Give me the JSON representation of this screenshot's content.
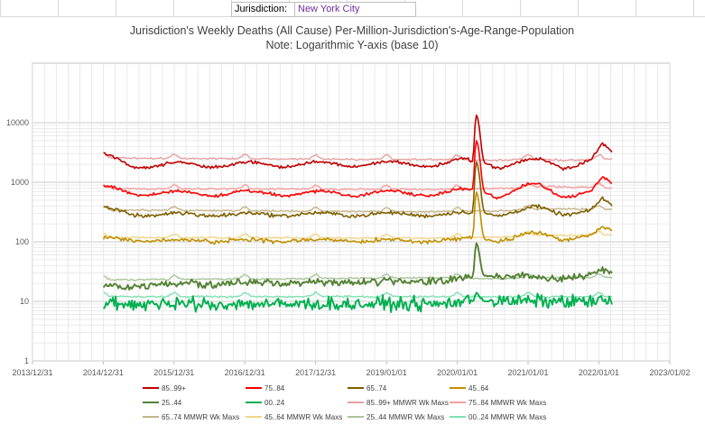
{
  "header": {
    "jurisdiction_label": "Jurisdiction:",
    "jurisdiction_value": "New York City"
  },
  "chart_data": {
    "type": "line",
    "title": "Jurisdiction's Weekly Deaths (All Cause) Per-Million-Jurisdiction's-Age-Range-Population",
    "subtitle": "Note: Logarithmic Y-axis (base 10)",
    "xlabel": "",
    "ylabel": "",
    "y_scale": "log10",
    "ylim": [
      1,
      100000
    ],
    "y_ticks": [
      1,
      10,
      100,
      1000,
      10000
    ],
    "y_tick_labels": [
      "1",
      "10",
      "100",
      "1000",
      "10000"
    ],
    "xlim": [
      "2013-12-31",
      "2023-01-02"
    ],
    "x_ticks": [
      "2013/12/31",
      "2014/12/31",
      "2015/12/31",
      "2016/12/31",
      "2017/12/31",
      "2019/01/01",
      "2020/01/01",
      "2021/01/01",
      "2022/01/01",
      "2023/01/02"
    ],
    "grid": true,
    "legend_position": "bottom",
    "x_range_of_data": [
      "2015-01-01",
      "2022-03-15"
    ],
    "covid_peak_date": "2020-04-08",
    "series": [
      {
        "name": "85..99+",
        "color": "#c00000",
        "kind": "weekly",
        "baseline": 2100,
        "seasonal_amp": 0.2,
        "noise": 0.05,
        "trend": [
          [
            2015.0,
            2800
          ],
          [
            2015.4,
            1950
          ],
          [
            2019.8,
            2050
          ],
          [
            2020.1,
            2250
          ],
          [
            2020.6,
            1900
          ],
          [
            2020.9,
            2150
          ],
          [
            2021.2,
            2300
          ],
          [
            2021.5,
            1900
          ],
          [
            2021.9,
            2300
          ],
          [
            2022.05,
            4100
          ],
          [
            2022.2,
            2900
          ]
        ],
        "peak": 13500
      },
      {
        "name": "75..84",
        "color": "#ff0000",
        "kind": "weekly",
        "baseline": 700,
        "seasonal_amp": 0.18,
        "noise": 0.05,
        "trend": [
          [
            2015.0,
            820
          ],
          [
            2015.5,
            650
          ],
          [
            2019.8,
            660
          ],
          [
            2020.1,
            720
          ],
          [
            2020.6,
            600
          ],
          [
            2020.9,
            800
          ],
          [
            2021.1,
            900
          ],
          [
            2021.5,
            600
          ],
          [
            2021.9,
            700
          ],
          [
            2022.05,
            1150
          ],
          [
            2022.2,
            900
          ]
        ],
        "peak": 5000
      },
      {
        "name": "65..74",
        "color": "#7f6000",
        "kind": "weekly",
        "baseline": 310,
        "seasonal_amp": 0.12,
        "noise": 0.06,
        "trend": [
          [
            2015.0,
            360
          ],
          [
            2015.5,
            290
          ],
          [
            2019.8,
            290
          ],
          [
            2020.1,
            300
          ],
          [
            2020.6,
            290
          ],
          [
            2020.9,
            330
          ],
          [
            2021.1,
            380
          ],
          [
            2021.5,
            300
          ],
          [
            2021.9,
            330
          ],
          [
            2022.05,
            520
          ],
          [
            2022.2,
            380
          ]
        ],
        "peak": 2200
      },
      {
        "name": "45..64",
        "color": "#bf9000",
        "kind": "weekly",
        "baseline": 110,
        "seasonal_amp": 0.08,
        "noise": 0.07,
        "trend": [
          [
            2015.0,
            115
          ],
          [
            2015.5,
            105
          ],
          [
            2019.8,
            105
          ],
          [
            2020.1,
            110
          ],
          [
            2020.6,
            105
          ],
          [
            2020.9,
            125
          ],
          [
            2021.1,
            140
          ],
          [
            2021.5,
            110
          ],
          [
            2021.9,
            130
          ],
          [
            2022.05,
            175
          ],
          [
            2022.2,
            145
          ]
        ],
        "peak": 680
      },
      {
        "name": "25..44",
        "color": "#548235",
        "kind": "weekly",
        "baseline": 20,
        "seasonal_amp": 0.05,
        "noise": 0.12,
        "trend": [
          [
            2015.0,
            18
          ],
          [
            2016.5,
            20
          ],
          [
            2019.8,
            22
          ],
          [
            2020.1,
            24
          ],
          [
            2020.5,
            27
          ],
          [
            2021.0,
            26
          ],
          [
            2021.5,
            25
          ],
          [
            2021.9,
            28
          ],
          [
            2022.05,
            35
          ],
          [
            2022.2,
            30
          ]
        ],
        "peak": 95
      },
      {
        "name": "00..24",
        "color": "#00b050",
        "kind": "weekly",
        "baseline": 9,
        "seasonal_amp": 0.03,
        "noise": 0.22,
        "trend": [
          [
            2015.0,
            9
          ],
          [
            2019.8,
            9
          ],
          [
            2020.1,
            10
          ],
          [
            2021.0,
            10
          ],
          [
            2022.2,
            10
          ]
        ],
        "peak": 14
      },
      {
        "name": "85..99+ MMWR Wk Maxs",
        "color": "#e6a0a0",
        "kind": "max",
        "level": 2300,
        "winter_bump": 3000,
        "trend": [
          [
            2015.0,
            2600
          ],
          [
            2015.9,
            2500
          ],
          [
            2019.8,
            2400
          ],
          [
            2020.6,
            2350
          ],
          [
            2020.9,
            2450
          ],
          [
            2021.5,
            2350
          ],
          [
            2022.2,
            2450
          ]
        ]
      },
      {
        "name": "75..84 MMWR Wk Maxs",
        "color": "#f4a0a0",
        "kind": "max",
        "level": 760,
        "winter_bump": 850,
        "trend": [
          [
            2015.0,
            780
          ],
          [
            2019.8,
            760
          ],
          [
            2020.6,
            780
          ],
          [
            2021.2,
            850
          ],
          [
            2022.2,
            800
          ]
        ]
      },
      {
        "name": "65..74 MMWR Wk Maxs",
        "color": "#c5b48a",
        "kind": "max",
        "level": 340,
        "winter_bump": 370,
        "trend": [
          [
            2015.0,
            340
          ],
          [
            2019.8,
            320
          ],
          [
            2020.6,
            330
          ],
          [
            2021.2,
            360
          ],
          [
            2022.2,
            350
          ]
        ]
      },
      {
        "name": "45..64 MMWR Wk Maxs",
        "color": "#f0d48a",
        "kind": "max",
        "level": 118,
        "winter_bump": 125,
        "trend": [
          [
            2015.0,
            118
          ],
          [
            2019.8,
            115
          ],
          [
            2020.6,
            120
          ],
          [
            2021.2,
            130
          ],
          [
            2022.2,
            130
          ]
        ]
      },
      {
        "name": "25..44 MMWR Wk Maxs",
        "color": "#a9c59a",
        "kind": "max",
        "level": 24,
        "winter_bump": 26,
        "trend": [
          [
            2015.0,
            23
          ],
          [
            2019.8,
            25
          ],
          [
            2020.6,
            24
          ],
          [
            2021.2,
            25
          ],
          [
            2022.2,
            25
          ]
        ]
      },
      {
        "name": "00..24 MMWR Wk Maxs",
        "color": "#7fe0b0",
        "kind": "max",
        "level": 12,
        "winter_bump": 13,
        "trend": [
          [
            2015.0,
            12
          ],
          [
            2019.8,
            12
          ],
          [
            2020.6,
            12
          ],
          [
            2021.2,
            12
          ],
          [
            2022.2,
            12
          ]
        ]
      }
    ]
  }
}
